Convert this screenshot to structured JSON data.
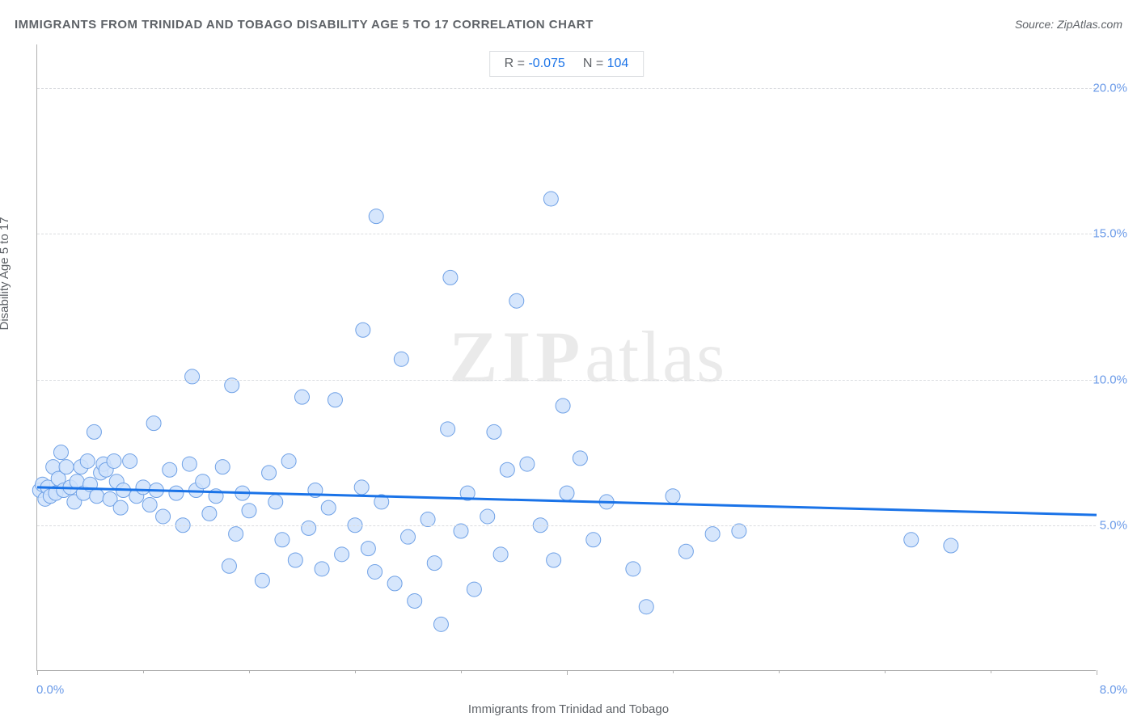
{
  "title": "IMMIGRANTS FROM TRINIDAD AND TOBAGO DISABILITY AGE 5 TO 17 CORRELATION CHART",
  "source": "Source: ZipAtlas.com",
  "watermark_bold": "ZIP",
  "watermark_light": "atlas",
  "chart": {
    "type": "scatter",
    "x_label": "Immigrants from Trinidad and Tobago",
    "y_label": "Disability Age 5 to 17",
    "xlim": [
      0.0,
      8.0
    ],
    "ylim": [
      0.0,
      21.5
    ],
    "x_tick_min_label": "0.0%",
    "x_tick_max_label": "8.0%",
    "y_ticks": [
      {
        "v": 5.0,
        "label": "5.0%"
      },
      {
        "v": 10.0,
        "label": "10.0%"
      },
      {
        "v": 15.0,
        "label": "15.0%"
      },
      {
        "v": 20.0,
        "label": "20.0%"
      }
    ],
    "x_major_ticks": [
      0.0,
      4.0,
      8.0
    ],
    "x_minor_ticks": [
      0.8,
      1.6,
      2.4,
      3.2,
      4.8,
      5.6,
      6.4,
      7.2
    ],
    "background_color": "#ffffff",
    "grid_color": "#dadce0",
    "axis_color": "#b0b0b0",
    "tick_label_color": "#6a9ae8",
    "label_color": "#5f6368",
    "label_fontsize": 15,
    "marker": {
      "radius": 9,
      "fill": "#cfe2fb",
      "stroke": "#6fa1e6",
      "stroke_width": 1,
      "opacity": 0.85
    },
    "trend_line": {
      "x1": 0.0,
      "y1": 6.3,
      "x2": 8.0,
      "y2": 5.35,
      "color": "#1a73e8",
      "width": 3
    },
    "stats": {
      "r_label": "R = ",
      "r_value": "-0.075",
      "n_label": "N = ",
      "n_value": "104"
    },
    "points": [
      [
        0.02,
        6.2
      ],
      [
        0.04,
        6.4
      ],
      [
        0.06,
        5.9
      ],
      [
        0.08,
        6.3
      ],
      [
        0.1,
        6.0
      ],
      [
        0.12,
        7.0
      ],
      [
        0.14,
        6.1
      ],
      [
        0.16,
        6.6
      ],
      [
        0.18,
        7.5
      ],
      [
        0.2,
        6.2
      ],
      [
        0.22,
        7.0
      ],
      [
        0.25,
        6.3
      ],
      [
        0.28,
        5.8
      ],
      [
        0.3,
        6.5
      ],
      [
        0.33,
        7.0
      ],
      [
        0.35,
        6.1
      ],
      [
        0.38,
        7.2
      ],
      [
        0.4,
        6.4
      ],
      [
        0.43,
        8.2
      ],
      [
        0.45,
        6.0
      ],
      [
        0.48,
        6.8
      ],
      [
        0.5,
        7.1
      ],
      [
        0.52,
        6.9
      ],
      [
        0.55,
        5.9
      ],
      [
        0.58,
        7.2
      ],
      [
        0.6,
        6.5
      ],
      [
        0.63,
        5.6
      ],
      [
        0.65,
        6.2
      ],
      [
        0.7,
        7.2
      ],
      [
        0.75,
        6.0
      ],
      [
        0.8,
        6.3
      ],
      [
        0.85,
        5.7
      ],
      [
        0.88,
        8.5
      ],
      [
        0.9,
        6.2
      ],
      [
        0.95,
        5.3
      ],
      [
        1.0,
        6.9
      ],
      [
        1.05,
        6.1
      ],
      [
        1.1,
        5.0
      ],
      [
        1.15,
        7.1
      ],
      [
        1.17,
        10.1
      ],
      [
        1.2,
        6.2
      ],
      [
        1.25,
        6.5
      ],
      [
        1.3,
        5.4
      ],
      [
        1.35,
        6.0
      ],
      [
        1.4,
        7.0
      ],
      [
        1.45,
        3.6
      ],
      [
        1.47,
        9.8
      ],
      [
        1.5,
        4.7
      ],
      [
        1.55,
        6.1
      ],
      [
        1.6,
        5.5
      ],
      [
        1.7,
        3.1
      ],
      [
        1.75,
        6.8
      ],
      [
        1.8,
        5.8
      ],
      [
        1.85,
        4.5
      ],
      [
        1.9,
        7.2
      ],
      [
        1.95,
        3.8
      ],
      [
        2.0,
        9.4
      ],
      [
        2.05,
        4.9
      ],
      [
        2.1,
        6.2
      ],
      [
        2.15,
        3.5
      ],
      [
        2.2,
        5.6
      ],
      [
        2.25,
        9.3
      ],
      [
        2.3,
        4.0
      ],
      [
        2.4,
        5.0
      ],
      [
        2.45,
        6.3
      ],
      [
        2.46,
        11.7
      ],
      [
        2.5,
        4.2
      ],
      [
        2.55,
        3.4
      ],
      [
        2.56,
        15.6
      ],
      [
        2.6,
        5.8
      ],
      [
        2.7,
        3.0
      ],
      [
        2.75,
        10.7
      ],
      [
        2.8,
        4.6
      ],
      [
        2.85,
        2.4
      ],
      [
        2.95,
        5.2
      ],
      [
        3.0,
        3.7
      ],
      [
        3.05,
        1.6
      ],
      [
        3.1,
        8.3
      ],
      [
        3.12,
        13.5
      ],
      [
        3.2,
        4.8
      ],
      [
        3.25,
        6.1
      ],
      [
        3.3,
        2.8
      ],
      [
        3.4,
        5.3
      ],
      [
        3.45,
        8.2
      ],
      [
        3.5,
        4.0
      ],
      [
        3.55,
        6.9
      ],
      [
        3.62,
        12.7
      ],
      [
        3.7,
        7.1
      ],
      [
        3.8,
        5.0
      ],
      [
        3.88,
        16.2
      ],
      [
        3.9,
        3.8
      ],
      [
        3.97,
        9.1
      ],
      [
        4.0,
        6.1
      ],
      [
        4.1,
        7.3
      ],
      [
        4.2,
        4.5
      ],
      [
        4.3,
        5.8
      ],
      [
        4.5,
        3.5
      ],
      [
        4.6,
        2.2
      ],
      [
        4.8,
        6.0
      ],
      [
        4.9,
        4.1
      ],
      [
        5.1,
        4.7
      ],
      [
        5.3,
        4.8
      ],
      [
        6.6,
        4.5
      ],
      [
        6.9,
        4.3
      ]
    ]
  }
}
